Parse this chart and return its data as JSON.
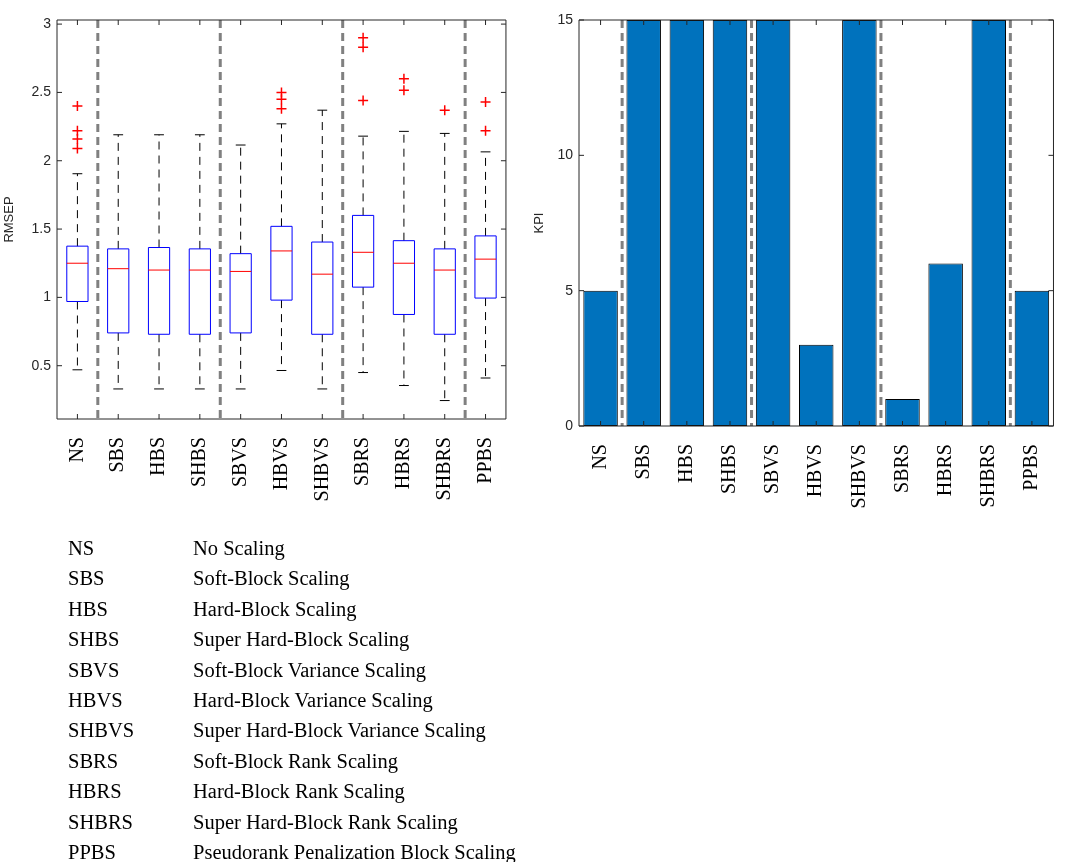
{
  "chart_data": [
    {
      "type": "box",
      "ylabel": "RMSEP",
      "categories": [
        "NS",
        "SBS",
        "HBS",
        "SHBS",
        "SBVS",
        "HBVS",
        "SHBVS",
        "SBRS",
        "HBRS",
        "SHBRS",
        "PPBS"
      ],
      "series": [
        {
          "color": "#0000ff",
          "boxes": [
            {
              "low": 0.47,
              "q1": 0.97,
              "median": 1.25,
              "q3": 1.375,
              "high": 1.905,
              "outliers": [
                2.4,
                2.22,
                2.16,
                2.09
              ]
            },
            {
              "low": 0.33,
              "q1": 0.74,
              "median": 1.21,
              "q3": 1.355,
              "high": 2.19
            },
            {
              "low": 0.33,
              "q1": 0.73,
              "median": 1.2,
              "q3": 1.365,
              "high": 2.19
            },
            {
              "low": 0.33,
              "q1": 0.73,
              "median": 1.2,
              "q3": 1.355,
              "high": 2.19
            },
            {
              "low": 0.33,
              "q1": 0.74,
              "median": 1.19,
              "q3": 1.32,
              "high": 2.115
            },
            {
              "low": 0.465,
              "q1": 0.98,
              "median": 1.34,
              "q3": 1.52,
              "high": 2.27,
              "outliers": [
                2.5,
                2.45,
                2.38
              ]
            },
            {
              "low": 0.33,
              "q1": 0.73,
              "median": 1.17,
              "q3": 1.405,
              "high": 2.37
            },
            {
              "low": 0.45,
              "q1": 1.075,
              "median": 1.33,
              "q3": 1.6,
              "high": 2.18,
              "outliers": [
                2.9,
                2.83,
                2.44
              ]
            },
            {
              "low": 0.355,
              "q1": 0.875,
              "median": 1.25,
              "q3": 1.415,
              "high": 2.215,
              "outliers": [
                2.6,
                2.515
              ]
            },
            {
              "low": 0.245,
              "q1": 0.73,
              "median": 1.2,
              "q3": 1.355,
              "high": 2.2,
              "outliers": [
                2.37
              ]
            },
            {
              "low": 0.41,
              "q1": 0.995,
              "median": 1.28,
              "q3": 1.45,
              "high": 2.065,
              "outliers": [
                2.43,
                2.22
              ]
            }
          ]
        }
      ],
      "ylim": [
        0.11,
        3.03
      ],
      "yticks": [
        0.5,
        1,
        1.5,
        2,
        2.5,
        3
      ],
      "annotations": [
        "NS No Scaling",
        "SBS Soft-Block Scaling",
        "HBS Hard-Block Scaling",
        "SHBS Super Hard-Block Scaling",
        "SBVS Soft-Block Variance Scaling",
        "HBVS Hard-Block Variance Scaling",
        "SHBVS Super Hard-Block Variance Scaling",
        "SBRS Soft-Block Rank Scaling",
        "HBRS Hard-Block Rank Scaling",
        "SHBRS Super Hard-Block Rank Scaling",
        "PPBS Pseudorank Penalization Block Scaling"
      ]
    },
    {
      "type": "bar",
      "ylabel": "KPI",
      "categories": [
        "NS",
        "SBS",
        "HBS",
        "SHBS",
        "SBVS",
        "HBVS",
        "SHBVS",
        "SBRS",
        "HBRS",
        "SHBRS",
        "PPBS"
      ],
      "values": [
        5,
        15,
        15,
        15,
        15,
        3,
        15,
        1,
        6,
        15,
        5
      ],
      "color": "#0072bd",
      "ylim": [
        0,
        15
      ],
      "yticks": [
        0,
        5,
        10,
        15
      ]
    }
  ]
}
